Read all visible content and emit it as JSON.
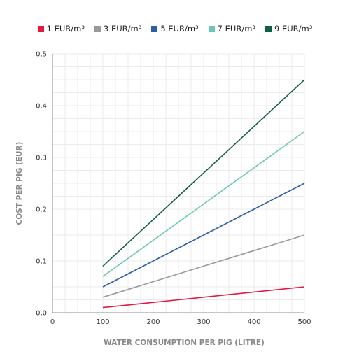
{
  "chart_data": {
    "type": "line",
    "xlabel": "WATER CONSUMPTION PER PIG (LITRE)",
    "ylabel": "COST PER PIG (EUR)",
    "xlim": [
      0,
      500
    ],
    "ylim": [
      0,
      0.5
    ],
    "x_ticks": [
      "0",
      "100",
      "200",
      "300",
      "400",
      "500"
    ],
    "x_tick_values": [
      0,
      100,
      200,
      300,
      400,
      500
    ],
    "y_ticks": [
      "0,0",
      "0,1",
      "0,2",
      "0,3",
      "0,4",
      "0,5"
    ],
    "y_tick_values": [
      0,
      0.1,
      0.2,
      0.3,
      0.4,
      0.5
    ],
    "grid": true,
    "legend_position": "top-center",
    "x": [
      100,
      150,
      200,
      250,
      300,
      350,
      400,
      450,
      500
    ],
    "series": [
      {
        "name": "1 EUR/m³",
        "color": "#e4193f",
        "values": [
          0.01,
          0.015,
          0.02,
          0.025,
          0.03,
          0.035,
          0.04,
          0.045,
          0.05
        ]
      },
      {
        "name": "3 EUR/m³",
        "color": "#9a9a9a",
        "values": [
          0.03,
          0.045,
          0.06,
          0.075,
          0.09,
          0.105,
          0.12,
          0.135,
          0.15
        ]
      },
      {
        "name": "5 EUR/m³",
        "color": "#2a5ea8",
        "values": [
          0.05,
          0.075,
          0.1,
          0.125,
          0.15,
          0.175,
          0.2,
          0.225,
          0.25
        ]
      },
      {
        "name": "7 EUR/m³",
        "color": "#6cc8b4",
        "values": [
          0.07,
          0.105,
          0.14,
          0.175,
          0.21,
          0.245,
          0.28,
          0.315,
          0.35
        ]
      },
      {
        "name": "9 EUR/m³",
        "color": "#0f5f45",
        "values": [
          0.09,
          0.135,
          0.18,
          0.225,
          0.27,
          0.315,
          0.36,
          0.405,
          0.45
        ]
      }
    ]
  }
}
